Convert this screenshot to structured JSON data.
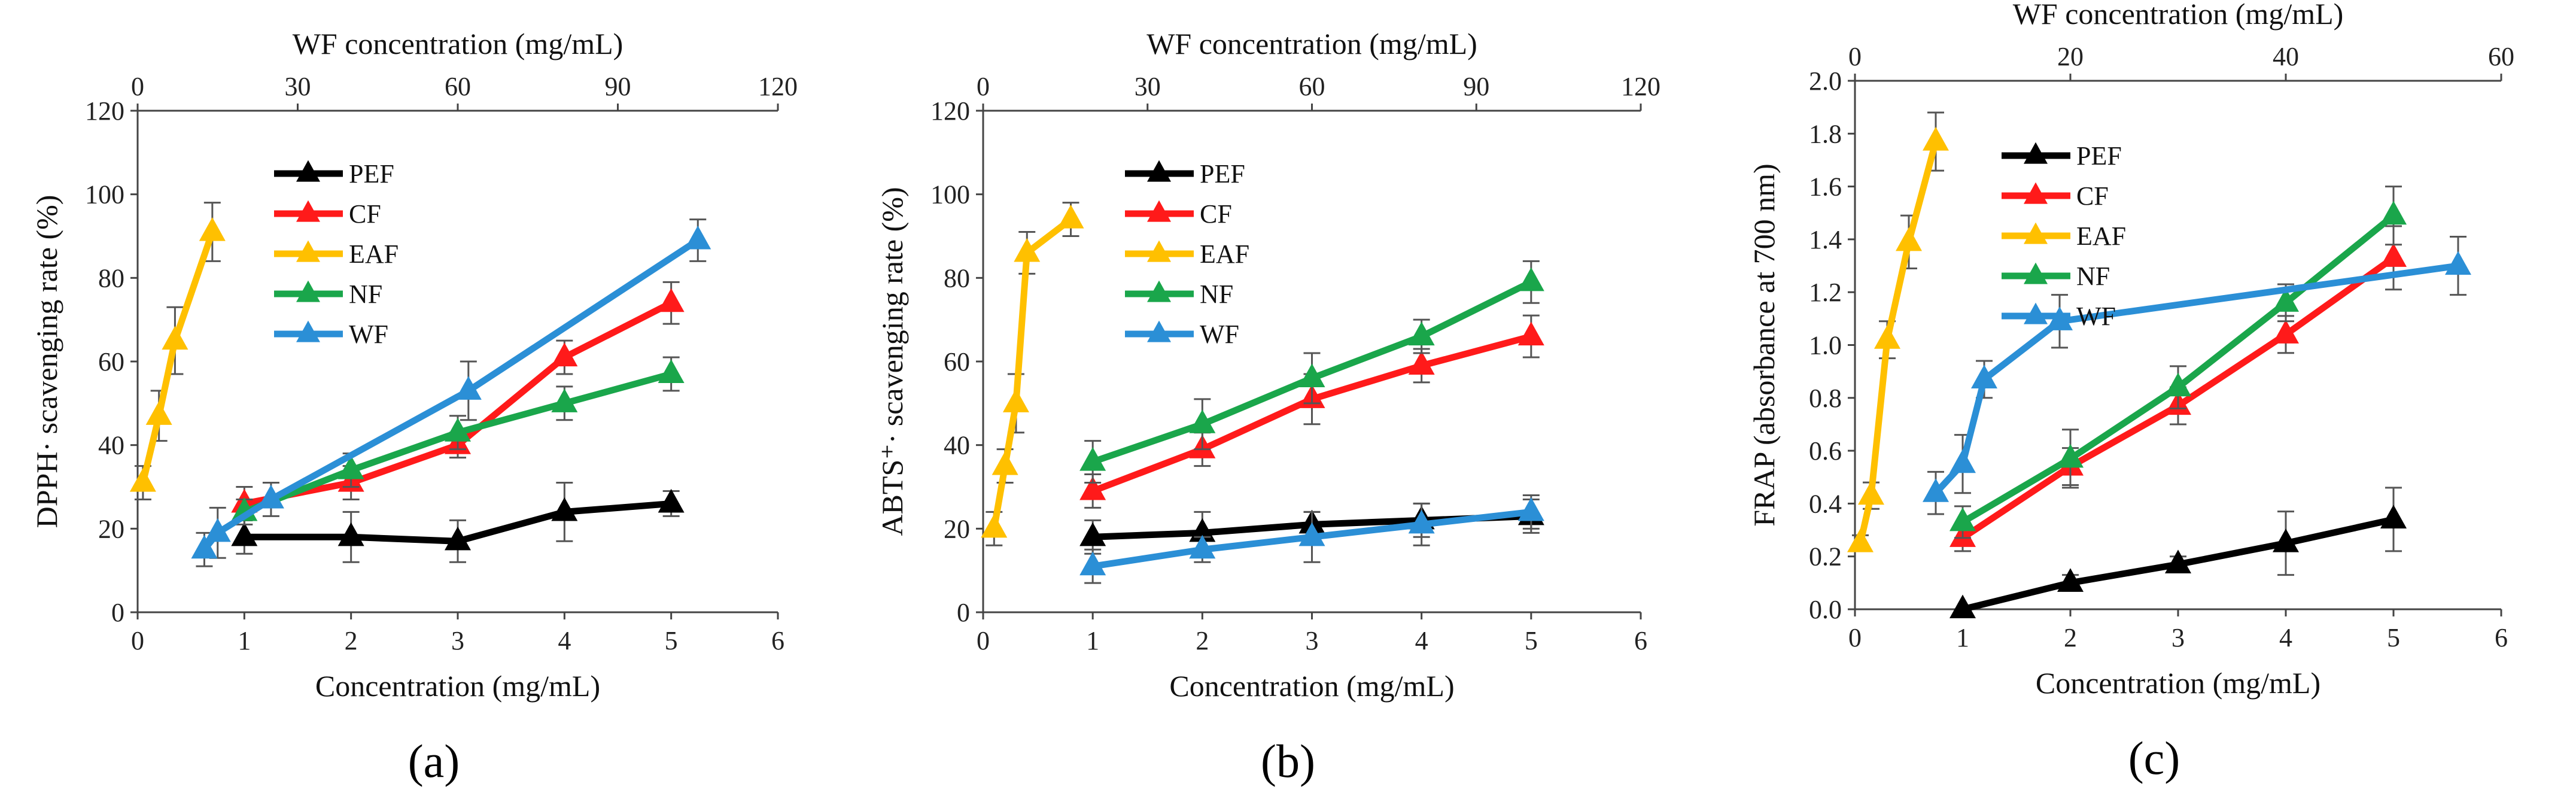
{
  "colors": {
    "PEF": "#000000",
    "CF": "#ff1a1a",
    "EAF": "#ffc000",
    "NF": "#1aa64b",
    "WF": "#2b8fd6"
  },
  "chart_data": [
    {
      "type": "line",
      "panel_label": "(a)",
      "xlabel": "Concentration (mg/mL)",
      "x2label": "WF concentration (mg/mL)",
      "ylabel": "DPPH· scavenging rate (%)",
      "xlim": [
        0,
        6
      ],
      "x_ticks": [
        "0",
        "1",
        "2",
        "3",
        "4",
        "5",
        "6"
      ],
      "x2lim": [
        0,
        120
      ],
      "x2_ticks": [
        "0",
        "30",
        "60",
        "90",
        "120"
      ],
      "ylim": [
        0,
        120
      ],
      "y_ticks": [
        "0",
        "20",
        "40",
        "60",
        "80",
        "100",
        "120"
      ],
      "legend": [
        "PEF",
        "CF",
        "EAF",
        "NF",
        "WF"
      ],
      "series": [
        {
          "name": "PEF",
          "axis": "bottom",
          "x": [
            1,
            2,
            3,
            4,
            5
          ],
          "y": [
            18,
            18,
            17,
            24,
            26
          ],
          "err": [
            4,
            6,
            5,
            7,
            3
          ]
        },
        {
          "name": "CF",
          "axis": "bottom",
          "x": [
            1,
            2,
            3,
            4,
            5
          ],
          "y": [
            26,
            31,
            40,
            61,
            74
          ],
          "err": [
            4,
            4,
            3,
            4,
            5
          ]
        },
        {
          "name": "EAF",
          "axis": "bottom",
          "x": [
            0.05,
            0.2,
            0.35,
            0.7
          ],
          "y": [
            31,
            47,
            65,
            91
          ],
          "err": [
            4,
            6,
            8,
            7
          ]
        },
        {
          "name": "NF",
          "axis": "bottom",
          "x": [
            1,
            2,
            3,
            4,
            5
          ],
          "y": [
            24,
            34,
            43,
            50,
            57
          ],
          "err": [
            3,
            4,
            4,
            4,
            4
          ]
        },
        {
          "name": "WF",
          "axis": "top",
          "x": [
            12.5,
            15,
            25,
            62,
            105
          ],
          "y": [
            15,
            19,
            27,
            53,
            89
          ],
          "err": [
            4,
            6,
            4,
            7,
            5
          ]
        }
      ]
    },
    {
      "type": "line",
      "panel_label": "(b)",
      "xlabel": "Concentration (mg/mL)",
      "x2label": "WF concentration (mg/mL)",
      "ylabel": "ABTS⁺· scavenging rate (%)",
      "xlim": [
        0,
        6
      ],
      "x_ticks": [
        "0",
        "1",
        "2",
        "3",
        "4",
        "5",
        "6"
      ],
      "x2lim": [
        0,
        120
      ],
      "x2_ticks": [
        "0",
        "30",
        "60",
        "90",
        "120"
      ],
      "ylim": [
        0,
        120
      ],
      "y_ticks": [
        "0",
        "20",
        "40",
        "60",
        "80",
        "100",
        "120"
      ],
      "legend": [
        "PEF",
        "CF",
        "EAF",
        "NF",
        "WF"
      ],
      "series": [
        {
          "name": "PEF",
          "axis": "bottom",
          "x": [
            1,
            2,
            3,
            4,
            5
          ],
          "y": [
            18,
            19,
            21,
            22,
            23
          ],
          "err": [
            4,
            5,
            3,
            4,
            4
          ]
        },
        {
          "name": "CF",
          "axis": "bottom",
          "x": [
            1,
            2,
            3,
            4,
            5
          ],
          "y": [
            29,
            39,
            51,
            59,
            66
          ],
          "err": [
            4,
            4,
            6,
            4,
            5
          ]
        },
        {
          "name": "EAF",
          "axis": "bottom",
          "x": [
            0.1,
            0.2,
            0.3,
            0.4,
            0.8
          ],
          "y": [
            20,
            35,
            50,
            86,
            94
          ],
          "err": [
            4,
            4,
            7,
            5,
            4
          ]
        },
        {
          "name": "NF",
          "axis": "bottom",
          "x": [
            1,
            2,
            3,
            4,
            5
          ],
          "y": [
            36,
            45,
            56,
            66,
            79
          ],
          "err": [
            5,
            6,
            6,
            4,
            5
          ]
        },
        {
          "name": "WF",
          "axis": "top",
          "x": [
            20,
            40,
            60,
            80,
            100
          ],
          "y": [
            11,
            15,
            18,
            21,
            24
          ],
          "err": [
            4,
            3,
            6,
            5,
            4
          ]
        }
      ]
    },
    {
      "type": "line",
      "panel_label": "(c)",
      "xlabel": "Concentration (mg/mL)",
      "x2label": "WF concentration (mg/mL)",
      "ylabel": "FRAP (absorbance at 700 nm)",
      "xlim": [
        0,
        6
      ],
      "x_ticks": [
        "0",
        "1",
        "2",
        "3",
        "4",
        "5",
        "6"
      ],
      "x2lim": [
        0,
        60
      ],
      "x2_ticks": [
        "0",
        "20",
        "40",
        "60"
      ],
      "ylim": [
        0,
        2.0
      ],
      "y_ticks": [
        "0.0",
        "0.2",
        "0.4",
        "0.6",
        "0.8",
        "1.0",
        "1.2",
        "1.4",
        "1.6",
        "1.8",
        "2.0"
      ],
      "legend": [
        "PEF",
        "CF",
        "EAF",
        "NF",
        "WF"
      ],
      "series": [
        {
          "name": "PEF",
          "axis": "bottom",
          "x": [
            1,
            2,
            3,
            4,
            5
          ],
          "y": [
            0.0,
            0.1,
            0.17,
            0.25,
            0.34
          ],
          "err": [
            0.0,
            0.03,
            0.03,
            0.12,
            0.12
          ]
        },
        {
          "name": "CF",
          "axis": "bottom",
          "x": [
            1,
            2,
            3,
            4,
            5
          ],
          "y": [
            0.27,
            0.54,
            0.77,
            1.04,
            1.33
          ],
          "err": [
            0.05,
            0.07,
            0.07,
            0.07,
            0.12
          ]
        },
        {
          "name": "EAF",
          "axis": "bottom",
          "x": [
            0.05,
            0.15,
            0.3,
            0.5,
            0.75
          ],
          "y": [
            0.25,
            0.43,
            1.02,
            1.39,
            1.77
          ],
          "err": [
            0.03,
            0.05,
            0.07,
            0.1,
            0.11
          ]
        },
        {
          "name": "NF",
          "axis": "bottom",
          "x": [
            1,
            2,
            3,
            4,
            5
          ],
          "y": [
            0.33,
            0.57,
            0.84,
            1.16,
            1.49
          ],
          "err": [
            0.06,
            0.11,
            0.08,
            0.07,
            0.11
          ]
        },
        {
          "name": "WF",
          "axis": "top",
          "x": [
            7.5,
            10,
            12,
            19,
            56
          ],
          "y": [
            0.44,
            0.55,
            0.87,
            1.09,
            1.3
          ],
          "err": [
            0.08,
            0.11,
            0.07,
            0.1,
            0.11
          ]
        }
      ]
    }
  ]
}
